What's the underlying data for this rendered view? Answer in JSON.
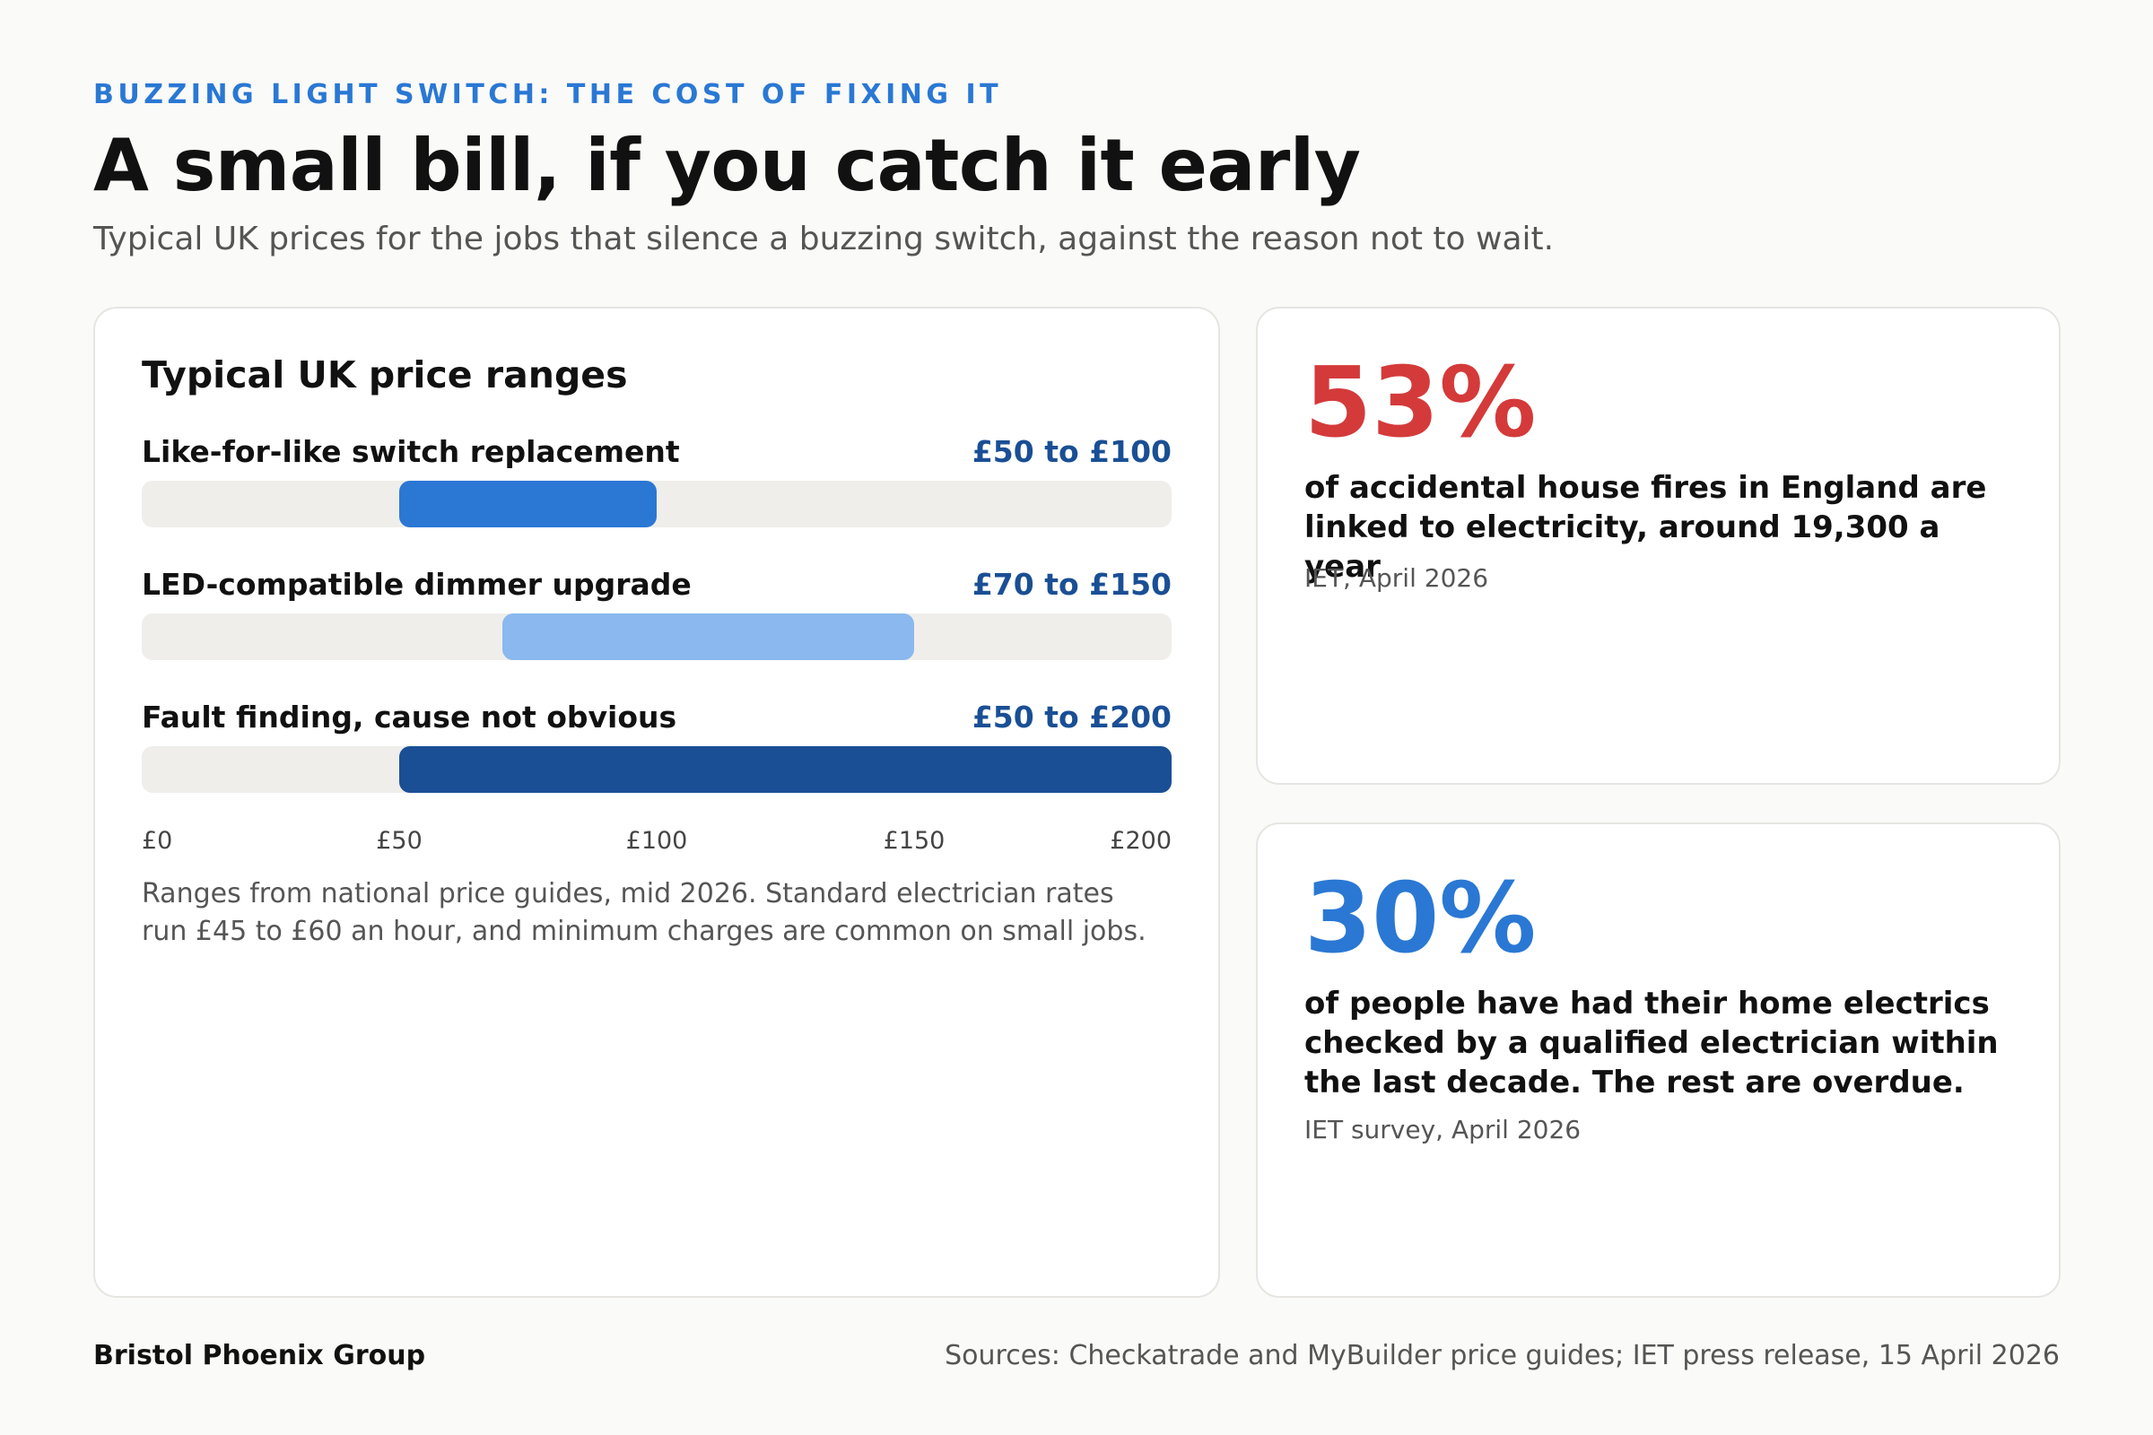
{
  "header": {
    "eyebrow": "BUZZING LIGHT SWITCH: THE COST OF FIXING IT",
    "title": "A small bill, if you catch it early",
    "subtitle": "Typical UK prices for the jobs that silence a buzzing switch, against the reason not to wait."
  },
  "colors": {
    "accent": "#2a78d4",
    "alert": "#d43a3a",
    "value_text": "#1a4f95",
    "track": "#efeeeb"
  },
  "chart_data": {
    "type": "bar",
    "title": "Typical UK price ranges",
    "xlim": [
      0,
      200
    ],
    "x_ticks": [
      "£0",
      "£50",
      "£100",
      "£150",
      "£200"
    ],
    "rows": [
      {
        "label": "Like-for-like switch replacement",
        "value_label": "£50 to £100",
        "min": 50,
        "max": 100,
        "color": "#2a78d4"
      },
      {
        "label": "LED-compatible dimmer upgrade",
        "value_label": "£70 to £150",
        "min": 70,
        "max": 150,
        "color": "#8ab8ef"
      },
      {
        "label": "Fault finding, cause not obvious",
        "value_label": "£50 to £200",
        "min": 50,
        "max": 200,
        "color": "#1a4f95"
      }
    ],
    "note": "Ranges from national price guides, mid 2026. Standard electrician rates run £45 to £60 an hour, and minimum charges are common on small jobs.",
    "grid": false
  },
  "stats": [
    {
      "value": "53%",
      "text": "of accidental house fires in England are linked to electricity, around 19,300 a year",
      "source": "IET, April 2026",
      "color": "#d43a3a"
    },
    {
      "value": "30%",
      "text": "of people have had their home electrics checked by a qualified electrician within the last decade. The rest are overdue.",
      "source": "IET survey, April 2026",
      "color": "#2a78d4"
    }
  ],
  "footer": {
    "brand": "Bristol Phoenix Group",
    "sources": "Sources: Checkatrade and MyBuilder price guides; IET press release, 15 April 2026"
  }
}
